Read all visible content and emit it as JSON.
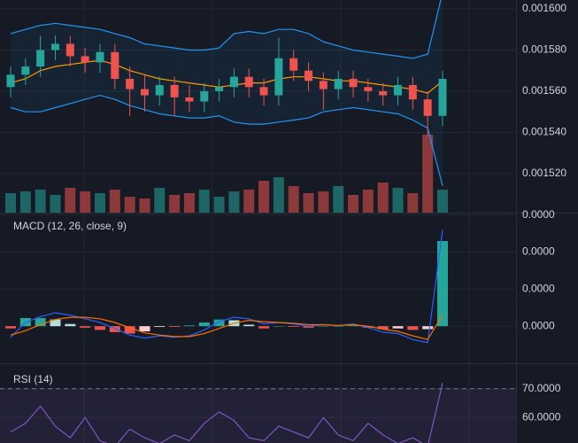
{
  "chart_data": [
    {
      "type": "candlestick",
      "open": [
        0.001562,
        0.001568,
        0.001572,
        0.00158,
        0.001583,
        0.001577,
        0.001574,
        0.001579,
        0.001566,
        0.001561,
        0.001558,
        0.001563,
        0.001557,
        0.001555,
        0.00156,
        0.001562,
        0.001567,
        0.001562,
        0.001558,
        0.001576,
        0.00157,
        0.001565,
        0.001561,
        0.001566,
        0.001562,
        0.00156,
        0.001558,
        0.001563,
        0.001556,
        0.001548
      ],
      "high": [
        0.001572,
        0.001576,
        0.001587,
        0.001587,
        0.001587,
        0.001581,
        0.001583,
        0.001583,
        0.001572,
        0.001568,
        0.001567,
        0.001567,
        0.001563,
        0.001564,
        0.001566,
        0.001571,
        0.001571,
        0.001566,
        0.001586,
        0.00158,
        0.001574,
        0.001569,
        0.00157,
        0.00157,
        0.001566,
        0.001564,
        0.001567,
        0.001567,
        0.00156,
        0.00157
      ],
      "low": [
        0.001557,
        0.001563,
        0.001567,
        0.001575,
        0.001572,
        0.001569,
        0.001569,
        0.001561,
        0.001548,
        0.00155,
        0.001553,
        0.001548,
        0.00155,
        0.00155,
        0.001555,
        0.001557,
        0.001557,
        0.001553,
        0.001553,
        0.001565,
        0.00156,
        0.001551,
        0.001556,
        0.001557,
        0.001555,
        0.001553,
        0.001553,
        0.001551,
        0.001538,
        0.001543
      ],
      "close": [
        0.001568,
        0.001572,
        0.00158,
        0.001583,
        0.001577,
        0.001574,
        0.001579,
        0.001566,
        0.001561,
        0.001558,
        0.001563,
        0.001557,
        0.001555,
        0.00156,
        0.001562,
        0.001567,
        0.001562,
        0.001558,
        0.001576,
        0.00157,
        0.001565,
        0.001561,
        0.001566,
        0.001562,
        0.00156,
        0.001558,
        0.001563,
        0.001556,
        0.001548,
        0.001566
      ],
      "volume": [
        22,
        24,
        26,
        20,
        28,
        24,
        22,
        26,
        18,
        16,
        28,
        20,
        22,
        26,
        18,
        24,
        26,
        36,
        40,
        30,
        22,
        24,
        30,
        20,
        26,
        34,
        28,
        22,
        88,
        26
      ],
      "volume_lim": [
        0,
        100
      ],
      "up_color": "#26a69a",
      "down_color": "#ef5350",
      "series": [
        {
          "color": "#2196f3",
          "values": [
            0.001588,
            0.00159,
            0.001592,
            0.001593,
            0.001592,
            0.001591,
            0.00159,
            0.001588,
            0.001586,
            0.001583,
            0.001582,
            0.001581,
            0.00158,
            0.00158,
            0.001581,
            0.001588,
            0.001589,
            0.001588,
            0.00159,
            0.00159,
            0.001588,
            0.001584,
            0.001582,
            0.00158,
            0.001579,
            0.001578,
            0.001577,
            0.001576,
            0.001578,
            0.001608
          ]
        },
        {
          "color": "#ff9800",
          "values": [
            0.001564,
            0.001566,
            0.00157,
            0.001572,
            0.001573,
            0.001574,
            0.001575,
            0.001573,
            0.00157,
            0.001568,
            0.001566,
            0.001565,
            0.001564,
            0.001563,
            0.001562,
            0.001563,
            0.001564,
            0.001564,
            0.001566,
            0.001567,
            0.001567,
            0.001566,
            0.001565,
            0.001565,
            0.001564,
            0.001563,
            0.001562,
            0.001561,
            0.001559,
            0.001565
          ]
        },
        {
          "color": "#2196f3",
          "values": [
            0.001552,
            0.00155,
            0.00155,
            0.001552,
            0.001554,
            0.001556,
            0.001558,
            0.001556,
            0.001553,
            0.001551,
            0.001549,
            0.001548,
            0.001547,
            0.001547,
            0.001548,
            0.001545,
            0.001544,
            0.001544,
            0.001545,
            0.001546,
            0.001547,
            0.00155,
            0.001551,
            0.001552,
            0.001551,
            0.00155,
            0.001549,
            0.001546,
            0.001542,
            0.001514
          ]
        }
      ],
      "ylim": [
        0.001501,
        0.0016043
      ],
      "yticks": [
        {
          "value": 0.0016,
          "label": "0.001600"
        },
        {
          "value": 0.00158,
          "label": "0.001580"
        },
        {
          "value": 0.00156,
          "label": "0.001560"
        },
        {
          "value": 0.00154,
          "label": "0.001540"
        },
        {
          "value": 0.00152,
          "label": "0.001520"
        }
      ],
      "grid": true
    },
    {
      "type": "macd",
      "title": "MACD (12, 26, close, 9)",
      "histogram": [
        -3e-07,
        1.1e-06,
        1.1e-06,
        9e-07,
        3e-07,
        -2e-07,
        -5e-07,
        -8e-07,
        -1e-06,
        -7e-07,
        -1e-07,
        -1e-07,
        1e-07,
        5e-07,
        9e-07,
        8e-07,
        2e-07,
        -3e-07,
        0.0,
        -1e-07,
        -2e-07,
        0.0,
        0.0,
        1e-07,
        -2e-07,
        -4e-07,
        -3e-07,
        -5e-07,
        -4e-07,
        1.15e-05
      ],
      "histogram_colors": [
        "#26a69a",
        "#b2dfdb",
        "#ffcdd2",
        "#ef5350"
      ],
      "series": [
        {
          "color": "#2962ff",
          "values": [
            -1.5e-06,
            5e-07,
            1.3e-06,
            1.8e-06,
            1.5e-06,
            1e-06,
            5e-07,
            -3e-07,
            -1.2e-06,
            -1.6e-06,
            -1.3e-06,
            -1.5e-06,
            -1.3e-06,
            -5e-07,
            6e-07,
            1.2e-06,
            1e-06,
            3e-07,
            5e-07,
            3e-07,
            0.0,
            2e-07,
            1e-07,
            3e-07,
            -2e-07,
            -8e-07,
            -1e-06,
            -1.8e-06,
            -2.2e-06,
            1.3e-05
          ]
        },
        {
          "color": "#ff6d00",
          "values": [
            -1.2e-06,
            -6e-07,
            2e-07,
            9e-07,
            1.2e-06,
            1.2e-06,
            1e-06,
            5e-07,
            -2e-07,
            -9e-07,
            -1.2e-06,
            -1.4e-06,
            -1.4e-06,
            -1e-06,
            -3e-07,
            4e-07,
            8e-07,
            6e-07,
            5e-07,
            4e-07,
            2e-07,
            2e-07,
            1e-07,
            2e-07,
            0.0,
            -4e-07,
            -7e-07,
            -1.3e-06,
            -1.8e-06,
            1.5e-06
          ]
        }
      ],
      "ylim": [
        -5e-06,
        1.52e-05
      ],
      "yticks": [
        {
          "value": 1.5e-05,
          "label": "0.0000"
        },
        {
          "value": 1e-05,
          "label": "0.0000"
        },
        {
          "value": 5e-06,
          "label": "0.0000"
        },
        {
          "value": 0,
          "label": "0.0000"
        }
      ],
      "grid": true
    },
    {
      "type": "line",
      "title": "RSI (14)",
      "series": [
        {
          "color": "#7e57c2",
          "values": [
            55,
            58,
            64,
            57,
            53,
            60,
            52,
            50,
            56,
            53,
            51,
            54,
            52,
            58,
            62,
            59,
            53,
            52,
            57,
            55,
            53,
            60,
            54,
            52,
            58,
            54,
            51,
            53,
            50,
            72
          ]
        }
      ],
      "ylim": [
        51.2,
        78.5
      ],
      "yticks": [
        {
          "value": 70,
          "label": "70.0000"
        },
        {
          "value": 60,
          "label": "60.0000"
        }
      ],
      "grid": true
    }
  ]
}
